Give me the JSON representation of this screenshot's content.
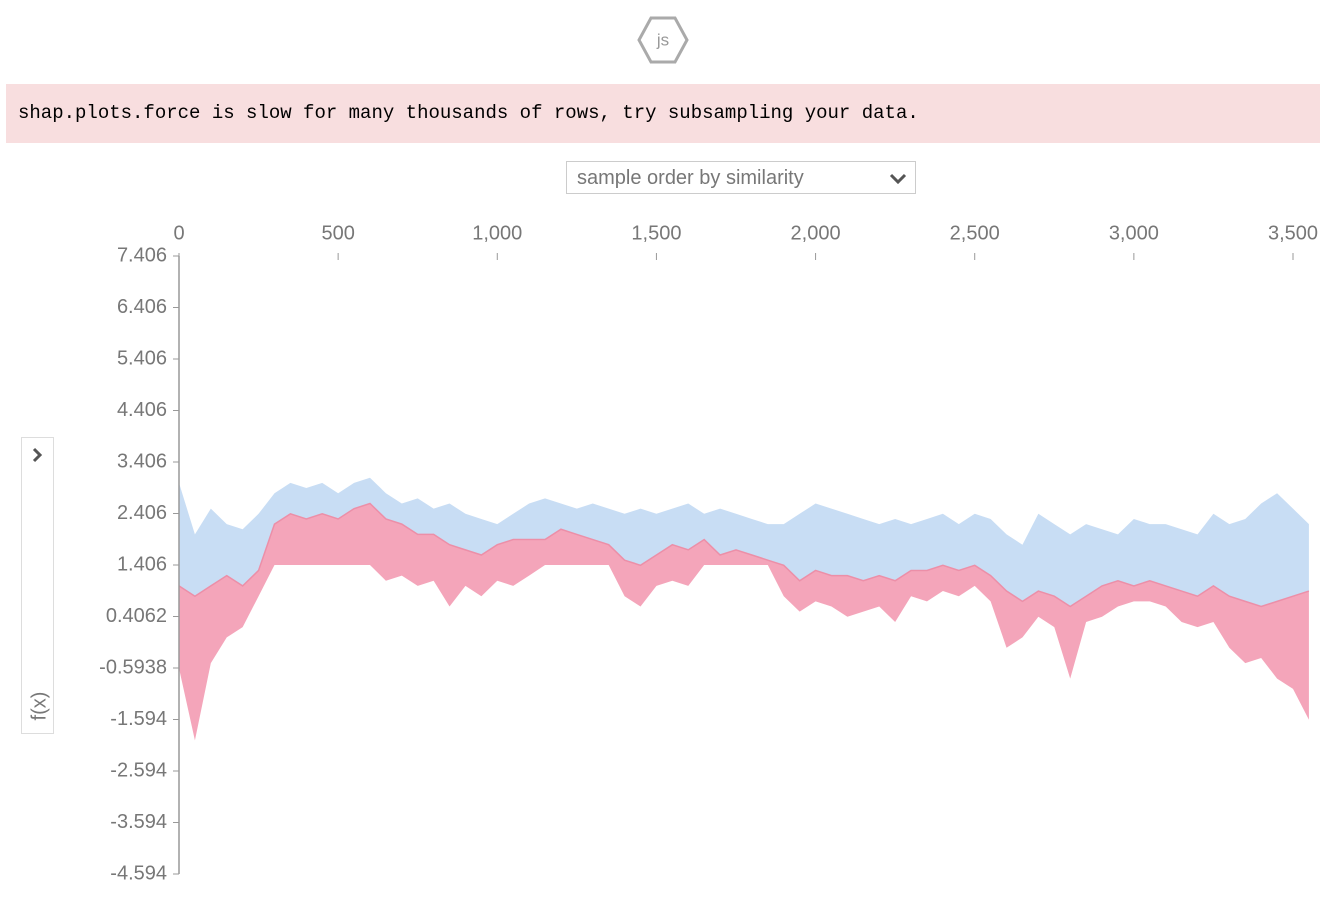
{
  "icon_label": "js",
  "notice": "shap.plots.force is slow for many thousands of rows, try subsampling your data.",
  "order_select": "sample order by similarity",
  "chart_data": {
    "type": "force",
    "ylabel": "f(x)",
    "xlim": [
      0,
      3555
    ],
    "ylim": [
      -4.594,
      7.406
    ],
    "xticks": [
      0,
      500,
      {
        "value": 1000,
        "label": "1,000"
      },
      {
        "value": 1500,
        "label": "1,500"
      },
      {
        "value": 2000,
        "label": "2,000"
      },
      {
        "value": 2500,
        "label": "2,500"
      },
      {
        "value": 3000,
        "label": "3,000"
      },
      {
        "value": 3500,
        "label": "3,500"
      }
    ],
    "yticks": [
      7.406,
      6.406,
      5.406,
      4.406,
      3.406,
      2.406,
      1.406,
      0.4062,
      -0.5938,
      -1.594,
      -2.594,
      -3.594,
      -4.594
    ],
    "x": [
      0,
      50,
      100,
      150,
      200,
      250,
      300,
      350,
      400,
      450,
      500,
      550,
      600,
      650,
      700,
      750,
      800,
      850,
      900,
      950,
      1000,
      1050,
      1100,
      1150,
      1200,
      1250,
      1300,
      1350,
      1400,
      1450,
      1500,
      1550,
      1600,
      1650,
      1700,
      1750,
      1800,
      1850,
      1900,
      1950,
      2000,
      2050,
      2100,
      2150,
      2200,
      2250,
      2300,
      2350,
      2400,
      2450,
      2500,
      2550,
      2600,
      2650,
      2700,
      2750,
      2800,
      2850,
      2900,
      2950,
      3000,
      3050,
      3100,
      3150,
      3200,
      3250,
      3300,
      3350,
      3400,
      3450,
      3500,
      3550
    ],
    "series": [
      {
        "color": "#c8ddf4",
        "values": [
          3.0,
          2.0,
          2.5,
          2.2,
          2.1,
          2.4,
          2.8,
          3.0,
          2.9,
          3.0,
          2.8,
          3.0,
          3.1,
          2.8,
          2.6,
          2.7,
          2.5,
          2.6,
          2.4,
          2.3,
          2.2,
          2.4,
          2.6,
          2.7,
          2.6,
          2.5,
          2.6,
          2.5,
          2.4,
          2.5,
          2.4,
          2.5,
          2.6,
          2.4,
          2.5,
          2.4,
          2.3,
          2.2,
          2.2,
          2.4,
          2.6,
          2.5,
          2.4,
          2.3,
          2.2,
          2.3,
          2.2,
          2.3,
          2.4,
          2.2,
          2.4,
          2.3,
          2.0,
          1.8,
          2.4,
          2.2,
          2.0,
          2.2,
          2.1,
          2.0,
          2.3,
          2.2,
          2.2,
          2.1,
          2.0,
          2.4,
          2.2,
          2.3,
          2.6,
          2.8,
          2.5,
          2.2
        ]
      },
      {
        "color": "#ec8fa8",
        "values": [
          1.0,
          0.8,
          1.0,
          1.2,
          1.0,
          1.3,
          2.2,
          2.4,
          2.3,
          2.4,
          2.3,
          2.5,
          2.6,
          2.3,
          2.2,
          2.0,
          2.0,
          1.8,
          1.7,
          1.6,
          1.8,
          1.9,
          1.9,
          1.9,
          2.1,
          2.0,
          1.9,
          1.8,
          1.5,
          1.4,
          1.6,
          1.8,
          1.7,
          1.9,
          1.6,
          1.7,
          1.6,
          1.5,
          1.4,
          1.1,
          1.3,
          1.2,
          1.2,
          1.1,
          1.2,
          1.1,
          1.3,
          1.3,
          1.4,
          1.3,
          1.4,
          1.2,
          0.9,
          0.7,
          0.9,
          0.8,
          0.6,
          0.8,
          1.0,
          1.1,
          1.0,
          1.1,
          1.0,
          0.9,
          0.8,
          1.0,
          0.8,
          0.7,
          0.6,
          0.7,
          0.8,
          0.9
        ]
      },
      {
        "color": "#f4a5ba",
        "values": [
          -0.6,
          -2.0,
          -0.5,
          0.0,
          0.2,
          0.8,
          1.406,
          1.406,
          1.406,
          1.406,
          1.406,
          1.406,
          1.406,
          1.1,
          1.2,
          1.0,
          1.1,
          0.6,
          1.0,
          0.8,
          1.1,
          1.0,
          1.2,
          1.406,
          1.406,
          1.406,
          1.406,
          1.406,
          0.8,
          0.6,
          1.0,
          1.1,
          1.0,
          1.406,
          1.406,
          1.406,
          1.406,
          1.406,
          0.8,
          0.5,
          0.7,
          0.6,
          0.4,
          0.5,
          0.6,
          0.3,
          0.8,
          0.7,
          0.9,
          0.8,
          1.0,
          0.7,
          -0.2,
          0.0,
          0.4,
          0.2,
          -0.8,
          0.3,
          0.4,
          0.6,
          0.7,
          0.7,
          0.6,
          0.3,
          0.2,
          0.3,
          -0.2,
          -0.5,
          -0.4,
          -0.8,
          -1.0,
          -1.6
        ]
      }
    ]
  }
}
